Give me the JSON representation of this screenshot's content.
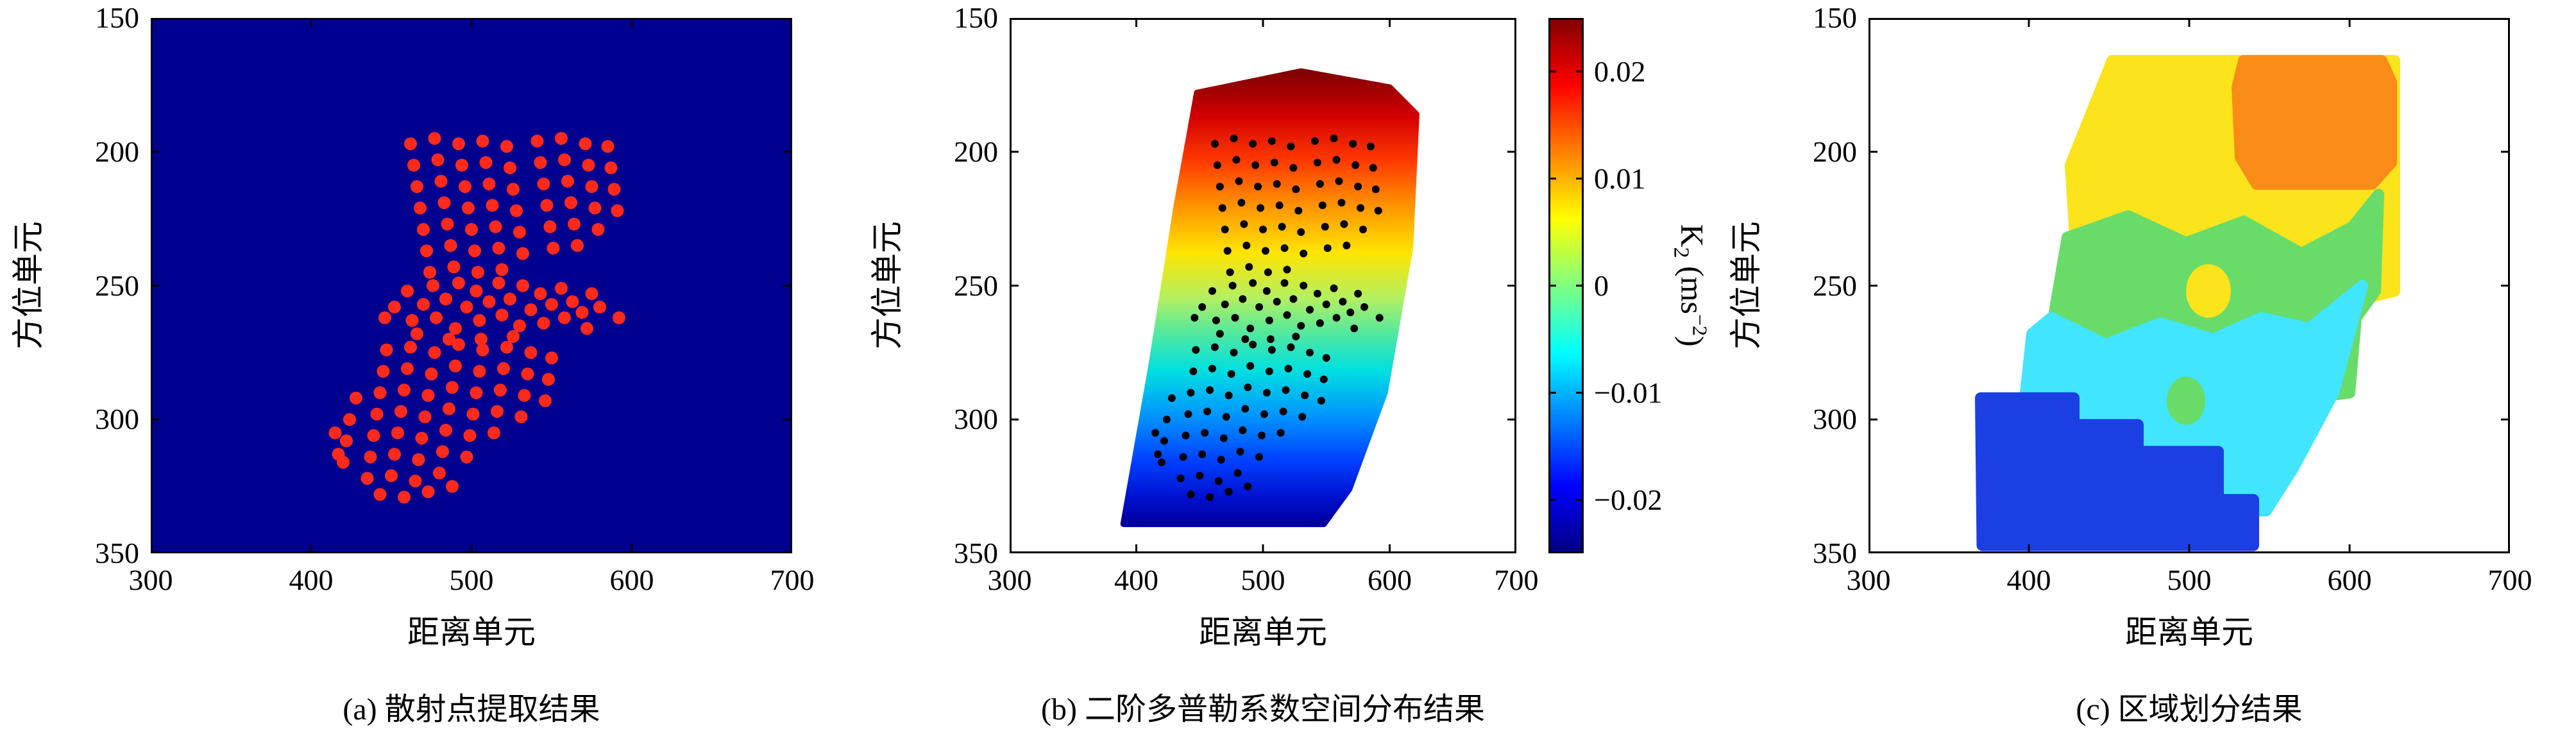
{
  "figure_title": "",
  "chart_data": [
    {
      "type": "scatter",
      "caption": "(a) 散射点提取结果",
      "xlabel": "距离单元",
      "ylabel": "方位单元",
      "xlim": [
        300,
        700
      ],
      "ylim": [
        150,
        350
      ],
      "y_inverted": true,
      "x_ticks": [
        300,
        400,
        500,
        600,
        700
      ],
      "y_ticks": [
        150,
        200,
        250,
        300,
        350
      ],
      "grid": false,
      "background": "#00008F",
      "marker_color": "#FF2A1A",
      "marker_radius": 10,
      "points": [
        [
          462,
          197
        ],
        [
          464,
          205
        ],
        [
          466,
          213
        ],
        [
          468,
          221
        ],
        [
          470,
          229
        ],
        [
          472,
          237
        ],
        [
          474,
          245
        ],
        [
          477,
          195
        ],
        [
          479,
          203
        ],
        [
          481,
          211
        ],
        [
          483,
          219
        ],
        [
          485,
          227
        ],
        [
          487,
          235
        ],
        [
          489,
          243
        ],
        [
          492,
          197
        ],
        [
          494,
          205
        ],
        [
          496,
          213
        ],
        [
          498,
          221
        ],
        [
          500,
          229
        ],
        [
          502,
          237
        ],
        [
          504,
          245
        ],
        [
          507,
          196
        ],
        [
          509,
          204
        ],
        [
          511,
          212
        ],
        [
          513,
          220
        ],
        [
          515,
          228
        ],
        [
          517,
          236
        ],
        [
          519,
          244
        ],
        [
          522,
          198
        ],
        [
          524,
          206
        ],
        [
          526,
          214
        ],
        [
          528,
          222
        ],
        [
          530,
          230
        ],
        [
          532,
          238
        ],
        [
          541,
          196
        ],
        [
          543,
          204
        ],
        [
          545,
          212
        ],
        [
          547,
          220
        ],
        [
          549,
          228
        ],
        [
          551,
          236
        ],
        [
          556,
          195
        ],
        [
          558,
          203
        ],
        [
          560,
          211
        ],
        [
          562,
          219
        ],
        [
          564,
          227
        ],
        [
          566,
          235
        ],
        [
          571,
          197
        ],
        [
          573,
          205
        ],
        [
          575,
          213
        ],
        [
          577,
          221
        ],
        [
          579,
          229
        ],
        [
          585,
          198
        ],
        [
          587,
          206
        ],
        [
          589,
          214
        ],
        [
          591,
          222
        ],
        [
          446,
          262
        ],
        [
          452,
          258
        ],
        [
          460,
          252
        ],
        [
          463,
          263
        ],
        [
          470,
          257
        ],
        [
          476,
          250
        ],
        [
          478,
          262
        ],
        [
          484,
          255
        ],
        [
          490,
          266
        ],
        [
          492,
          249
        ],
        [
          497,
          258
        ],
        [
          503,
          252
        ],
        [
          505,
          263
        ],
        [
          511,
          256
        ],
        [
          517,
          249
        ],
        [
          519,
          261
        ],
        [
          524,
          255
        ],
        [
          530,
          265
        ],
        [
          532,
          250
        ],
        [
          537,
          259
        ],
        [
          543,
          253
        ],
        [
          545,
          264
        ],
        [
          550,
          257
        ],
        [
          556,
          251
        ],
        [
          558,
          262
        ],
        [
          563,
          256
        ],
        [
          569,
          260
        ],
        [
          575,
          253
        ],
        [
          580,
          258
        ],
        [
          592,
          262
        ],
        [
          572,
          266
        ],
        [
          466,
          268
        ],
        [
          486,
          270
        ],
        [
          506,
          270
        ],
        [
          526,
          269
        ],
        [
          447,
          274
        ],
        [
          445,
          282
        ],
        [
          443,
          290
        ],
        [
          441,
          298
        ],
        [
          439,
          306
        ],
        [
          437,
          314
        ],
        [
          435,
          322
        ],
        [
          462,
          273
        ],
        [
          460,
          281
        ],
        [
          458,
          289
        ],
        [
          456,
          297
        ],
        [
          454,
          305
        ],
        [
          452,
          313
        ],
        [
          450,
          321
        ],
        [
          477,
          275
        ],
        [
          475,
          283
        ],
        [
          473,
          291
        ],
        [
          471,
          299
        ],
        [
          469,
          307
        ],
        [
          467,
          315
        ],
        [
          465,
          323
        ],
        [
          492,
          272
        ],
        [
          490,
          280
        ],
        [
          488,
          288
        ],
        [
          486,
          296
        ],
        [
          484,
          304
        ],
        [
          482,
          312
        ],
        [
          480,
          320
        ],
        [
          507,
          274
        ],
        [
          505,
          282
        ],
        [
          503,
          290
        ],
        [
          501,
          298
        ],
        [
          499,
          306
        ],
        [
          497,
          314
        ],
        [
          522,
          273
        ],
        [
          520,
          281
        ],
        [
          518,
          289
        ],
        [
          516,
          297
        ],
        [
          514,
          305
        ],
        [
          537,
          275
        ],
        [
          535,
          283
        ],
        [
          533,
          291
        ],
        [
          531,
          299
        ],
        [
          550,
          277
        ],
        [
          548,
          285
        ],
        [
          546,
          293
        ],
        [
          424,
          300
        ],
        [
          422,
          308
        ],
        [
          420,
          316
        ],
        [
          428,
          292
        ],
        [
          415,
          305
        ],
        [
          417,
          313
        ],
        [
          443,
          328
        ],
        [
          458,
          329
        ],
        [
          473,
          327
        ],
        [
          488,
          325
        ]
      ]
    },
    {
      "type": "heatmap",
      "caption": "(b) 二阶多普勒系数空间分布结果",
      "xlabel": "距离单元",
      "ylabel": "方位单元",
      "xlim": [
        300,
        700
      ],
      "ylim": [
        150,
        350
      ],
      "y_inverted": true,
      "x_ticks": [
        300,
        400,
        500,
        600,
        700
      ],
      "y_ticks": [
        150,
        200,
        250,
        300,
        350
      ],
      "grid": false,
      "region_polygon": [
        [
          448,
          178
        ],
        [
          530,
          170
        ],
        [
          600,
          176
        ],
        [
          621,
          186
        ],
        [
          616,
          236
        ],
        [
          596,
          290
        ],
        [
          568,
          326
        ],
        [
          548,
          339
        ],
        [
          390,
          339
        ],
        [
          412,
          280
        ],
        [
          432,
          220
        ],
        [
          442,
          194
        ]
      ],
      "gradient_stops": [
        {
          "offset": 0.0,
          "color": "#7F0000"
        },
        {
          "offset": 0.1,
          "color": "#D40000"
        },
        {
          "offset": 0.2,
          "color": "#FF3C00"
        },
        {
          "offset": 0.3,
          "color": "#FF9600"
        },
        {
          "offset": 0.4,
          "color": "#FFE400"
        },
        {
          "offset": 0.5,
          "color": "#B4F060"
        },
        {
          "offset": 0.58,
          "color": "#50E8A0"
        },
        {
          "offset": 0.66,
          "color": "#00E0E0"
        },
        {
          "offset": 0.76,
          "color": "#0096FF"
        },
        {
          "offset": 0.86,
          "color": "#0040FF"
        },
        {
          "offset": 0.94,
          "color": "#0010D0"
        },
        {
          "offset": 1.0,
          "color": "#0000A0"
        }
      ],
      "points_from_chart": 0,
      "marker_color": "#000000",
      "marker_radius": 6,
      "colorbar": {
        "label_parts": {
          "prefix": "K",
          "sub": "2",
          "mid": " (ms",
          "sup": "−2",
          "suffix": ")"
        },
        "range": [
          -0.025,
          0.025
        ],
        "ticks": [
          0.02,
          0.01,
          0,
          -0.01,
          -0.02
        ],
        "tick_labels": [
          "0.02",
          "0.01",
          "0",
          "−0.01",
          "−0.02"
        ],
        "stops": [
          {
            "offset": 0.0,
            "color": "#800000"
          },
          {
            "offset": 0.125,
            "color": "#FF0000"
          },
          {
            "offset": 0.25,
            "color": "#FF8000"
          },
          {
            "offset": 0.375,
            "color": "#FFFF00"
          },
          {
            "offset": 0.5,
            "color": "#80FF80"
          },
          {
            "offset": 0.625,
            "color": "#00FFFF"
          },
          {
            "offset": 0.75,
            "color": "#0080FF"
          },
          {
            "offset": 0.875,
            "color": "#0000FF"
          },
          {
            "offset": 1.0,
            "color": "#000080"
          }
        ]
      }
    },
    {
      "type": "regions",
      "caption": "(c) 区域划分结果",
      "xlabel": "距离单元",
      "ylabel": "方位单元",
      "xlim": [
        300,
        700
      ],
      "ylim": [
        150,
        350
      ],
      "y_inverted": true,
      "x_ticks": [
        300,
        400,
        500,
        600,
        700
      ],
      "y_ticks": [
        150,
        200,
        250,
        300,
        350
      ],
      "grid": false,
      "regions": [
        {
          "name": "yellow-region",
          "color": "#FBE41C",
          "polygon": [
            [
              452,
              166
            ],
            [
              628,
              166
            ],
            [
              628,
              252
            ],
            [
              560,
              262
            ],
            [
              470,
              266
            ],
            [
              432,
              262
            ],
            [
              426,
              205
            ]
          ]
        },
        {
          "name": "orange-region",
          "color": "#F98C17",
          "polygon": [
            [
              534,
              166
            ],
            [
              620,
              166
            ],
            [
              626,
              174
            ],
            [
              626,
              204
            ],
            [
              614,
              212
            ],
            [
              542,
              212
            ],
            [
              532,
              202
            ],
            [
              530,
              176
            ]
          ]
        },
        {
          "name": "green-region",
          "color": "#69DB69",
          "polygon": [
            [
              424,
              232
            ],
            [
              462,
              224
            ],
            [
              498,
              234
            ],
            [
              534,
              226
            ],
            [
              570,
              238
            ],
            [
              602,
              228
            ],
            [
              618,
              216
            ],
            [
              616,
              252
            ],
            [
              604,
              262
            ],
            [
              600,
              290
            ],
            [
              500,
              298
            ],
            [
              430,
              295
            ],
            [
              416,
              260
            ]
          ]
        },
        {
          "name": "cyan-region",
          "color": "#41E5FD",
          "polygon": [
            [
              414,
              262
            ],
            [
              448,
              272
            ],
            [
              482,
              264
            ],
            [
              515,
              270
            ],
            [
              545,
              262
            ],
            [
              575,
              266
            ],
            [
              608,
              250
            ],
            [
              590,
              290
            ],
            [
              565,
              318
            ],
            [
              548,
              334
            ],
            [
              460,
              336
            ],
            [
              400,
              330
            ],
            [
              398,
              290
            ],
            [
              402,
              268
            ]
          ]
        },
        {
          "name": "blue-region",
          "color": "#1C3FE4",
          "polygon": [
            [
              370,
              292
            ],
            [
              428,
              292
            ],
            [
              428,
              302
            ],
            [
              468,
              302
            ],
            [
              468,
              312
            ],
            [
              518,
              312
            ],
            [
              518,
              330
            ],
            [
              540,
              330
            ],
            [
              540,
              347
            ],
            [
              371,
              347
            ]
          ]
        }
      ],
      "ellipses": [
        {
          "name": "yellow-spot",
          "color": "#FBE41C",
          "cx": 512,
          "cy": 252,
          "rx": 14,
          "ry": 10
        },
        {
          "name": "green-spot",
          "color": "#69DB69",
          "cx": 498,
          "cy": 293,
          "rx": 12,
          "ry": 9
        }
      ]
    }
  ]
}
